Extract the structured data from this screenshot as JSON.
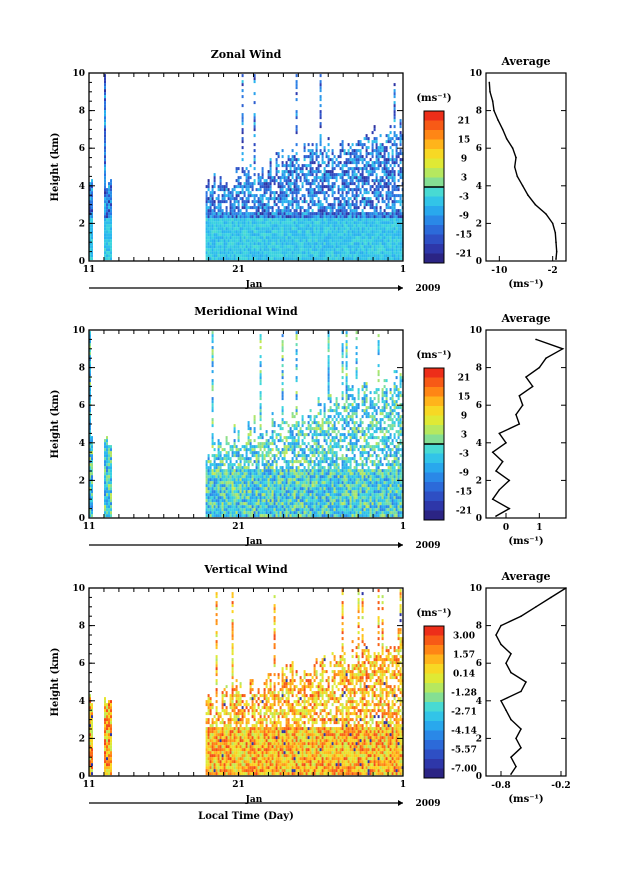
{
  "chart_data": [
    {
      "type": "heatmap",
      "title": "Zonal Wind",
      "ylabel": "Height (km)",
      "ylim": [
        0,
        10
      ],
      "yticks": [
        "0",
        "2",
        "4",
        "6",
        "8",
        "10"
      ],
      "xticks": [
        "11",
        "21",
        "1"
      ],
      "month_label": "Jan",
      "year_label": "2009",
      "unit_label": "(ms⁻¹)",
      "colorbar_ticks": [
        "21",
        "15",
        "9",
        "3",
        "-3",
        "-9",
        "-15",
        "-21"
      ],
      "colorbar_range": [
        -24,
        24
      ],
      "zero_line_value": 0,
      "dominant_value": -12,
      "average_profile": {
        "title": "Average",
        "xticks": [
          "-10",
          "-2"
        ],
        "xlabel": "(ms⁻¹)",
        "xlim": [
          -12,
          0
        ],
        "height": [
          0.1,
          0.5,
          1.0,
          1.5,
          2.0,
          2.5,
          3.0,
          3.5,
          4.0,
          4.5,
          5.0,
          5.5,
          6.0,
          6.5,
          7.0,
          7.5,
          8.0,
          8.5,
          9.0,
          9.5
        ],
        "value": [
          -1.5,
          -1.4,
          -1.5,
          -1.6,
          -2.0,
          -3.0,
          -4.6,
          -5.7,
          -6.5,
          -7.3,
          -7.7,
          -7.5,
          -8.0,
          -8.9,
          -9.5,
          -10.2,
          -10.8,
          -11.0,
          -11.4,
          -11.5
        ]
      }
    },
    {
      "type": "heatmap",
      "title": "Meridional Wind",
      "ylabel": "Height (km)",
      "ylim": [
        0,
        10
      ],
      "yticks": [
        "0",
        "2",
        "4",
        "6",
        "8",
        "10"
      ],
      "xticks": [
        "11",
        "21",
        "1"
      ],
      "month_label": "Jan",
      "year_label": "2009",
      "unit_label": "(ms⁻¹)",
      "colorbar_ticks": [
        "21",
        "15",
        "9",
        "3",
        "-3",
        "-9",
        "-15",
        "-21"
      ],
      "colorbar_range": [
        -24,
        24
      ],
      "zero_line_value": 0,
      "dominant_value": -3,
      "average_profile": {
        "title": "Average",
        "xticks": [
          "0",
          "1"
        ],
        "xlabel": "(ms⁻¹)",
        "xlim": [
          -0.6,
          1.8
        ],
        "height": [
          0.1,
          0.5,
          1.0,
          1.5,
          2.0,
          2.5,
          3.0,
          3.5,
          4.0,
          4.5,
          5.0,
          5.5,
          6.0,
          6.5,
          7.0,
          7.5,
          8.0,
          8.5,
          9.0,
          9.5
        ],
        "value": [
          -0.3,
          0.1,
          -0.4,
          -0.2,
          0.1,
          -0.3,
          -0.1,
          -0.4,
          0.0,
          -0.2,
          0.4,
          0.3,
          0.5,
          0.4,
          0.8,
          0.6,
          1.0,
          1.2,
          1.7,
          0.9
        ]
      }
    },
    {
      "type": "heatmap",
      "title": "Vertical Wind",
      "ylabel": "Height (km)",
      "ylim": [
        0,
        10
      ],
      "yticks": [
        "0",
        "2",
        "4",
        "6",
        "8",
        "10"
      ],
      "xticks": [
        "11",
        "21",
        "1"
      ],
      "month_label": "Jan",
      "year_label": "2009",
      "xlabel": "Local Time (Day)",
      "unit_label": "(ms⁻¹)",
      "colorbar_ticks": [
        "3.00",
        "1.57",
        "0.14",
        "-1.28",
        "-2.71",
        "-4.14",
        "-5.57",
        "-7.00"
      ],
      "colorbar_range": [
        -7.7,
        3.7
      ],
      "zero_line_value": null,
      "dominant_value": 1.0,
      "average_profile": {
        "title": "Average",
        "xticks": [
          "-0.8",
          "-0.2"
        ],
        "xlabel": "(ms⁻¹)",
        "xlim": [
          -0.95,
          -0.15
        ],
        "height": [
          0.1,
          0.5,
          1.0,
          1.5,
          2.0,
          2.5,
          3.0,
          3.5,
          4.0,
          4.5,
          5.0,
          5.5,
          6.0,
          6.5,
          7.0,
          7.5,
          8.0,
          8.5,
          9.0,
          9.5,
          10.0
        ],
        "value": [
          -0.7,
          -0.65,
          -0.7,
          -0.6,
          -0.65,
          -0.6,
          -0.7,
          -0.75,
          -0.8,
          -0.6,
          -0.55,
          -0.7,
          -0.75,
          -0.7,
          -0.8,
          -0.85,
          -0.8,
          -0.6,
          -0.45,
          -0.3,
          -0.15
        ]
      }
    }
  ]
}
